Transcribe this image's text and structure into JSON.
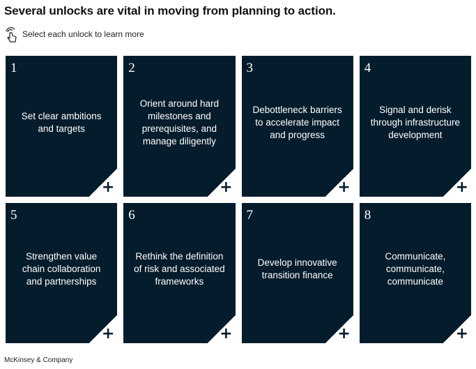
{
  "title": "Several unlocks are vital in moving from planning to action.",
  "hint": {
    "icon": "pointer-hand-icon",
    "text": "Select each unlock to learn more"
  },
  "cards": [
    {
      "number": "1",
      "text": "Set clear ambitions and targets"
    },
    {
      "number": "2",
      "text": "Orient around hard milestones and prerequisites, and manage diligently"
    },
    {
      "number": "3",
      "text": "Debottleneck barriers to accelerate impact and progress"
    },
    {
      "number": "4",
      "text": "Signal and derisk through infrastructure development"
    },
    {
      "number": "5",
      "text": "Strengthen value chain collaboration and partnerships"
    },
    {
      "number": "6",
      "text": "Rethink the definition of risk and associated frameworks"
    },
    {
      "number": "7",
      "text": "Develop innovative transition finance"
    },
    {
      "number": "8",
      "text": "Communicate, communicate, communicate"
    }
  ],
  "card_expand_symbol": "+",
  "footer": "McKinsey & Company",
  "colors": {
    "card_bg": "#051c2c",
    "card_text": "#ffffff",
    "page_bg": "#ffffff"
  }
}
